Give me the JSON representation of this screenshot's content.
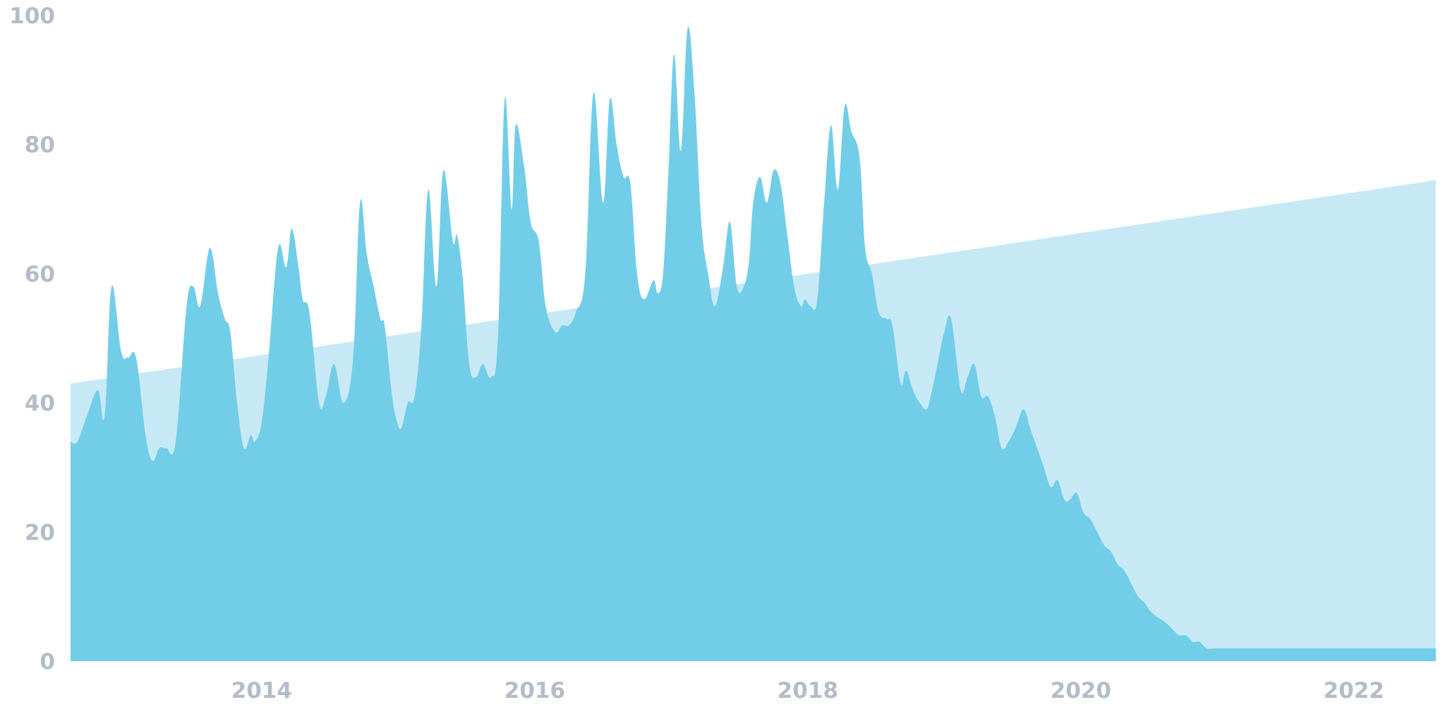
{
  "chart_data": {
    "type": "area",
    "title": "",
    "xlabel": "",
    "ylabel": "",
    "ylim": [
      0,
      100
    ],
    "xlim": [
      2012.6,
      2022.6
    ],
    "y_ticks": [
      "0",
      "20",
      "40",
      "60",
      "80",
      "100"
    ],
    "x_ticks": [
      {
        "value": 2014,
        "label": "2014"
      },
      {
        "value": 2016,
        "label": "2016"
      },
      {
        "value": 2018,
        "label": "2018"
      },
      {
        "value": 2020,
        "label": "2020"
      },
      {
        "value": 2022,
        "label": "2022"
      }
    ],
    "grid": false,
    "legend": "none",
    "colors": {
      "series": "#72cde8",
      "trend": "#c7e9f6",
      "ticks": "#b4bcc9"
    },
    "series": [
      {
        "x": [
          2012.6,
          2012.65,
          2012.72,
          2012.8,
          2012.85,
          2012.9,
          2012.97,
          2013.02,
          2013.08,
          2013.15,
          2013.2,
          2013.25,
          2013.3,
          2013.37,
          2013.45,
          2013.5,
          2013.55,
          2013.62,
          2013.68,
          2013.73,
          2013.77,
          2013.82,
          2013.87,
          2013.92,
          2013.95,
          2014.0,
          2014.05,
          2014.12,
          2014.18,
          2014.22,
          2014.27,
          2014.3,
          2014.35,
          2014.42,
          2014.47,
          2014.53,
          2014.6,
          2014.67,
          2014.72,
          2014.77,
          2014.82,
          2014.87,
          2014.9,
          2014.95,
          2014.98,
          2015.02,
          2015.07,
          2015.12,
          2015.17,
          2015.22,
          2015.28,
          2015.33,
          2015.4,
          2015.43,
          2015.47,
          2015.52,
          2015.57,
          2015.62,
          2015.68,
          2015.73,
          2015.78,
          2015.83,
          2015.86,
          2015.92,
          2015.97,
          2016.03,
          2016.08,
          2016.15,
          2016.2,
          2016.25,
          2016.3,
          2016.37,
          2016.43,
          2016.5,
          2016.55,
          2016.6,
          2016.65,
          2016.7,
          2016.75,
          2016.8,
          2016.87,
          2016.9,
          2016.94,
          2016.98,
          2017.02,
          2017.07,
          2017.12,
          2017.17,
          2017.22,
          2017.27,
          2017.32,
          2017.38,
          2017.43,
          2017.48,
          2017.53,
          2017.57,
          2017.6,
          2017.65,
          2017.7,
          2017.75,
          2017.8,
          2017.85,
          2017.9,
          2017.95,
          2017.98,
          2018.02,
          2018.07,
          2018.12,
          2018.17,
          2018.22,
          2018.27,
          2018.32,
          2018.38,
          2018.42,
          2018.47,
          2018.52,
          2018.58,
          2018.62,
          2018.68,
          2018.72,
          2018.77,
          2018.82,
          2018.87,
          2018.9,
          2018.95,
          2019.0,
          2019.05,
          2019.12,
          2019.17,
          2019.22,
          2019.27,
          2019.32,
          2019.37,
          2019.42,
          2019.47,
          2019.52,
          2019.58,
          2019.63,
          2019.68,
          2019.73,
          2019.78,
          2019.83,
          2019.88,
          2019.92,
          2019.97,
          2020.02,
          2020.07,
          2020.12,
          2020.17,
          2020.22,
          2020.27,
          2020.32,
          2020.37,
          2020.42,
          2020.47,
          2020.5,
          2020.55,
          2020.62,
          2020.67,
          2020.72,
          2020.77,
          2020.82,
          2020.87,
          2020.92,
          2020.97,
          2021.02,
          2021.07,
          2021.12,
          2021.17,
          2021.22,
          2021.27,
          2021.32,
          2021.37,
          2021.42,
          2021.47,
          2021.52,
          2021.57,
          2021.62,
          2021.67,
          2021.72,
          2021.77,
          2021.82,
          2021.87,
          2021.92,
          2021.97,
          2022.02,
          2022.07,
          2022.12,
          2022.17,
          2022.22,
          2022.27,
          2022.32,
          2022.37,
          2022.42,
          2022.47,
          2022.52,
          2022.55,
          2022.58,
          2022.6
        ],
        "values": [
          34,
          34,
          38,
          42,
          38,
          58,
          48,
          47,
          47,
          35,
          31,
          33,
          33,
          34,
          55,
          58,
          55,
          64,
          57,
          53,
          51,
          40,
          33,
          35,
          34,
          37,
          47,
          64,
          61,
          67,
          61,
          56,
          54,
          40,
          41,
          46,
          40,
          47,
          71,
          63,
          58,
          53,
          52,
          42,
          38,
          36,
          40,
          41,
          52,
          73,
          58,
          76,
          65,
          66,
          60,
          46,
          44,
          46,
          44,
          50,
          87,
          70,
          83,
          77,
          68,
          65,
          55,
          51,
          52,
          52,
          54,
          60,
          88,
          71,
          87,
          80,
          75,
          74,
          60,
          56,
          59,
          57,
          60,
          76,
          94,
          79,
          98,
          88,
          68,
          60,
          55,
          61,
          68,
          58,
          58,
          62,
          71,
          75,
          71,
          76,
          74,
          66,
          58,
          55,
          56,
          55,
          56,
          71,
          83,
          73,
          86,
          82,
          78,
          64,
          60,
          54,
          53,
          52,
          43,
          45,
          42,
          40,
          39,
          41,
          46,
          51,
          53,
          42,
          44,
          46,
          41,
          41,
          38,
          33,
          34,
          36,
          39,
          36,
          33,
          30,
          27,
          28,
          25,
          25,
          26,
          23,
          22,
          20,
          18,
          17,
          15,
          14,
          12,
          10,
          9,
          8,
          7,
          6,
          5,
          4,
          4,
          3,
          3,
          2,
          2,
          2,
          2,
          2,
          2,
          2,
          2,
          2,
          2,
          2,
          2,
          2,
          2,
          2,
          2,
          2,
          2,
          2,
          2,
          2,
          2,
          2,
          2,
          2,
          2,
          2,
          2,
          2,
          2,
          2,
          2,
          2,
          2,
          2,
          2
        ]
      },
      {
        "x": [
          2012.6,
          2022.6
        ],
        "values": [
          43,
          74.5
        ]
      }
    ]
  }
}
